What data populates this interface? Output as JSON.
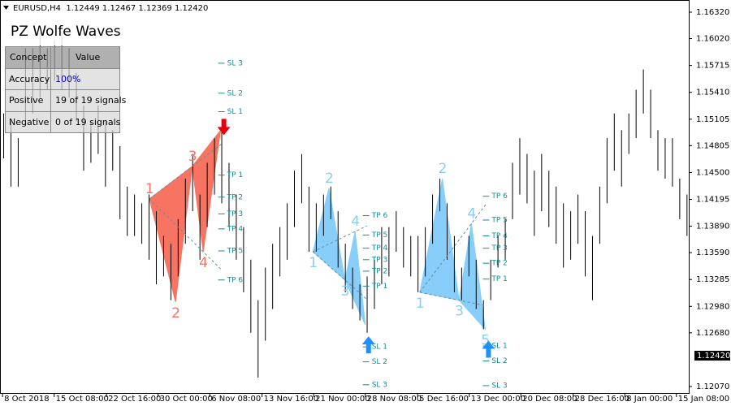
{
  "chart_data": {
    "type": "hilo",
    "title": "EURUSD,H4  1.12449 1.12467 1.12369 1.12420",
    "color": "#000000",
    "high": [
      1.1517,
      1.1508,
      1.1489,
      1.1591,
      1.1591,
      1.1609,
      1.1591,
      1.16,
      1.1609,
      1.1591,
      1.1563,
      1.1526,
      1.1508,
      1.1526,
      1.1508,
      1.1498,
      1.148,
      1.1434,
      1.1425,
      1.1415,
      1.1425,
      1.1406,
      1.1378,
      1.1369,
      1.1397,
      1.1443,
      1.1471,
      1.1425,
      1.1461,
      1.1489,
      1.1498,
      1.1461,
      1.1425,
      1.1388,
      1.1351,
      1.1305,
      1.1342,
      1.1369,
      1.1388,
      1.1415,
      1.1452,
      1.1471,
      1.1434,
      1.1415,
      1.1425,
      1.1434,
      1.1406,
      1.1369,
      1.1342,
      1.1323,
      1.1332,
      1.1351,
      1.1388,
      1.1388,
      1.1406,
      1.1388,
      1.1378,
      1.1378,
      1.1388,
      1.1425,
      1.1443,
      1.1415,
      1.1378,
      1.1342,
      1.1378,
      1.1351,
      1.1305,
      1.1351,
      1.1378,
      1.1397,
      1.1461,
      1.1489,
      1.1471,
      1.1452,
      1.1471,
      1.1452,
      1.1434,
      1.1415,
      1.1406,
      1.1425,
      1.1406,
      1.1378,
      1.1434,
      1.1489,
      1.1517,
      1.1498,
      1.1517,
      1.1544,
      1.1567,
      1.1544,
      1.1498,
      1.1489,
      1.1489,
      1.1443,
      1.1425
    ],
    "low": [
      1.1466,
      1.1434,
      1.1434,
      1.1508,
      1.1517,
      1.1535,
      1.1544,
      1.1554,
      1.1544,
      1.1535,
      1.1508,
      1.1452,
      1.1461,
      1.1471,
      1.1434,
      1.1452,
      1.1397,
      1.1378,
      1.1378,
      1.1369,
      1.1351,
      1.1323,
      1.1332,
      1.1305,
      1.1332,
      1.1369,
      1.1406,
      1.1351,
      1.1388,
      1.1425,
      1.1415,
      1.1388,
      1.1351,
      1.1314,
      1.1268,
      1.1217,
      1.1259,
      1.1295,
      1.1332,
      1.1351,
      1.1388,
      1.1415,
      1.136,
      1.136,
      1.1378,
      1.1397,
      1.1342,
      1.1314,
      1.1295,
      1.1282,
      1.1268,
      1.1295,
      1.1323,
      1.1332,
      1.136,
      1.1342,
      1.1332,
      1.1314,
      1.1332,
      1.1369,
      1.1406,
      1.1351,
      1.1314,
      1.1305,
      1.1332,
      1.1295,
      1.1272,
      1.1305,
      1.1342,
      1.1351,
      1.1397,
      1.1425,
      1.1415,
      1.1378,
      1.1406,
      1.1388,
      1.1369,
      1.1342,
      1.1351,
      1.1369,
      1.1332,
      1.1305,
      1.1369,
      1.1415,
      1.1452,
      1.1434,
      1.1471,
      1.1489,
      1.1517,
      1.1489,
      1.1452,
      1.1443,
      1.1434,
      1.1397,
      1.1378
    ],
    "xlim": [
      -0.45,
      94.3
    ],
    "xticks": [
      {
        "value": -0.1,
        "label": "8 Oct 2018"
      },
      {
        "value": 7.0,
        "label": "15 Oct 08:00"
      },
      {
        "value": 14.2,
        "label": "22 Oct 16:00"
      },
      {
        "value": 21.3,
        "label": "30 Oct 00:00"
      },
      {
        "value": 28.4,
        "label": "6 Nov 08:00"
      },
      {
        "value": 35.6,
        "label": "13 Nov 16:00"
      },
      {
        "value": 42.7,
        "label": "21 Nov 00:00"
      },
      {
        "value": 49.8,
        "label": "28 Nov 08:00"
      },
      {
        "value": 57.0,
        "label": "5 Dec 16:00"
      },
      {
        "value": 64.1,
        "label": "13 Dec 00:00"
      },
      {
        "value": 71.2,
        "label": "20 Dec 08:00"
      },
      {
        "value": 78.4,
        "label": "28 Dec 16:00"
      },
      {
        "value": 85.5,
        "label": "8 Jan 00:00"
      },
      {
        "value": 92.6,
        "label": "15 Jan 08:00"
      }
    ],
    "ylim": [
      1.1207,
      1.1632
    ],
    "yticks": [
      {
        "value": 1.1632,
        "label": "1.16320"
      },
      {
        "value": 1.1602,
        "label": "1.16020"
      },
      {
        "value": 1.15715,
        "label": "1.15715"
      },
      {
        "value": 1.1541,
        "label": "1.15410"
      },
      {
        "value": 1.15105,
        "label": "1.15105"
      },
      {
        "value": 1.14805,
        "label": "1.14805"
      },
      {
        "value": 1.145,
        "label": "1.14500"
      },
      {
        "value": 1.14195,
        "label": "1.14195"
      },
      {
        "value": 1.1389,
        "label": "1.13890"
      },
      {
        "value": 1.1359,
        "label": "1.13590"
      },
      {
        "value": 1.13285,
        "label": "1.13285"
      },
      {
        "value": 1.1298,
        "label": "1.12980"
      },
      {
        "value": 1.1268,
        "label": "1.12680"
      },
      {
        "value": 1.1207,
        "label": "1.12070"
      }
    ],
    "last_price": {
      "value": 1.1242,
      "label": "1.12420"
    },
    "grid": false,
    "level_color": "#1b8a8a",
    "dash_color": "#5f8fa0",
    "patterns": [
      {
        "color": "#f87462",
        "arrow_color": "#e8000b",
        "points": [
          {
            "label": "1",
            "x": 20.1,
            "y": 1.142
          },
          {
            "label": "2",
            "x": 23.7,
            "y": 1.1303
          },
          {
            "label": "3",
            "x": 26.0,
            "y": 1.1457
          },
          {
            "label": "4",
            "x": 27.5,
            "y": 1.136
          },
          {
            "x": 29.9,
            "y": 1.1498
          }
        ],
        "levels": [
          {
            "label": "SL 3",
            "value": 1.1574
          },
          {
            "label": "SL 2",
            "value": 1.154
          },
          {
            "label": "SL 1",
            "value": 1.1519
          },
          {
            "label": "TP 1",
            "value": 1.1447
          },
          {
            "label": "TP 2",
            "value": 1.1422
          },
          {
            "label": "TP 3",
            "value": 1.1403
          },
          {
            "label": "TP 4",
            "value": 1.1386
          },
          {
            "label": "TP 5",
            "value": 1.1361
          },
          {
            "label": "TP 6",
            "value": 1.1328
          }
        ]
      },
      {
        "color": "#87cefa",
        "arrow_color": "#1e90ff",
        "points": [
          {
            "label": "1",
            "x": 42.6,
            "y": 1.136
          },
          {
            "label": "2",
            "x": 44.8,
            "y": 1.1432
          },
          {
            "label": "3",
            "x": 47.0,
            "y": 1.1328
          },
          {
            "label": "4",
            "x": 48.4,
            "y": 1.1383
          },
          {
            "x": 49.8,
            "y": 1.1277
          }
        ],
        "levels": [
          {
            "label": "TP 6",
            "value": 1.1401
          },
          {
            "label": "TP 5",
            "value": 1.1379
          },
          {
            "label": "TP 4",
            "value": 1.1364
          },
          {
            "label": "TP 3",
            "value": 1.1351
          },
          {
            "label": "TP 2",
            "value": 1.1338
          },
          {
            "label": "TP 1",
            "value": 1.1321
          },
          {
            "label": "SL 1",
            "value": 1.1252
          },
          {
            "label": "SL 2",
            "value": 1.1235
          },
          {
            "label": "SL 3",
            "value": 1.1209
          }
        ]
      },
      {
        "color": "#87cefa",
        "arrow_color": "#1e90ff",
        "points": [
          {
            "label": "1",
            "x": 57.3,
            "y": 1.1314
          },
          {
            "label": "2",
            "x": 60.4,
            "y": 1.1443
          },
          {
            "label": "3",
            "x": 62.7,
            "y": 1.1305
          },
          {
            "label": "4",
            "x": 64.4,
            "y": 1.1392
          },
          {
            "label": "5",
            "x": 66.3,
            "y": 1.1272
          }
        ],
        "levels": [
          {
            "label": "TP 6",
            "value": 1.1423
          },
          {
            "label": "TP 5",
            "value": 1.1396
          },
          {
            "label": "TP 4",
            "value": 1.1378
          },
          {
            "label": "TP 3",
            "value": 1.1364
          },
          {
            "label": "TP 2",
            "value": 1.1347
          },
          {
            "label": "TP 1",
            "value": 1.1329
          },
          {
            "label": "SL 1",
            "value": 1.1253
          },
          {
            "label": "SL 2",
            "value": 1.1236
          },
          {
            "label": "SL 3",
            "value": 1.1208
          }
        ]
      }
    ],
    "panel": {
      "title": "PZ Wolfe Waves",
      "header": [
        "Concept",
        "Value"
      ],
      "rows": [
        [
          "Accuracy",
          "100%"
        ],
        [
          "Positive",
          "19 of 19 signals"
        ],
        [
          "Negative",
          "0 of 19 signals"
        ]
      ]
    }
  }
}
